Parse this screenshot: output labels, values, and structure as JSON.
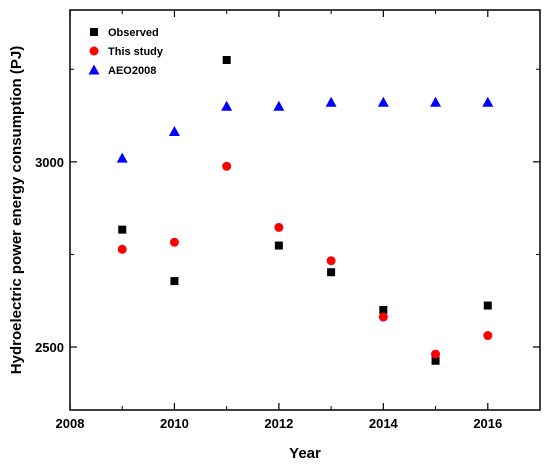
{
  "chart_data": {
    "type": "scatter",
    "xlabel": "Year",
    "ylabel": "Hydroelectric power energy consumption (PJ)",
    "xlim": [
      2008,
      2017
    ],
    "ylim": [
      2330,
      3410
    ],
    "x_ticks": [
      2008,
      2010,
      2012,
      2014,
      2016
    ],
    "y_ticks": [
      2500,
      3000
    ],
    "legend_position": "top-left",
    "series": [
      {
        "name": "Observed",
        "marker": "square",
        "color": "#000000",
        "points": [
          {
            "x": 2009,
            "y": 2817
          },
          {
            "x": 2010,
            "y": 2678
          },
          {
            "x": 2011,
            "y": 3275
          },
          {
            "x": 2012,
            "y": 2774
          },
          {
            "x": 2013,
            "y": 2702
          },
          {
            "x": 2014,
            "y": 2600
          },
          {
            "x": 2015,
            "y": 2463
          },
          {
            "x": 2016,
            "y": 2612
          }
        ]
      },
      {
        "name": "This study",
        "marker": "circle",
        "color": "#ff0000",
        "points": [
          {
            "x": 2009,
            "y": 2764
          },
          {
            "x": 2010,
            "y": 2783
          },
          {
            "x": 2011,
            "y": 2988
          },
          {
            "x": 2012,
            "y": 2823
          },
          {
            "x": 2013,
            "y": 2733
          },
          {
            "x": 2014,
            "y": 2581
          },
          {
            "x": 2015,
            "y": 2481
          },
          {
            "x": 2016,
            "y": 2531
          }
        ]
      },
      {
        "name": "AEO2008",
        "marker": "triangle",
        "color": "#0000ff",
        "points": [
          {
            "x": 2009,
            "y": 3010
          },
          {
            "x": 2010,
            "y": 3082
          },
          {
            "x": 2011,
            "y": 3150
          },
          {
            "x": 2012,
            "y": 3150
          },
          {
            "x": 2013,
            "y": 3161
          },
          {
            "x": 2014,
            "y": 3161
          },
          {
            "x": 2015,
            "y": 3161
          },
          {
            "x": 2016,
            "y": 3161
          }
        ]
      }
    ]
  }
}
